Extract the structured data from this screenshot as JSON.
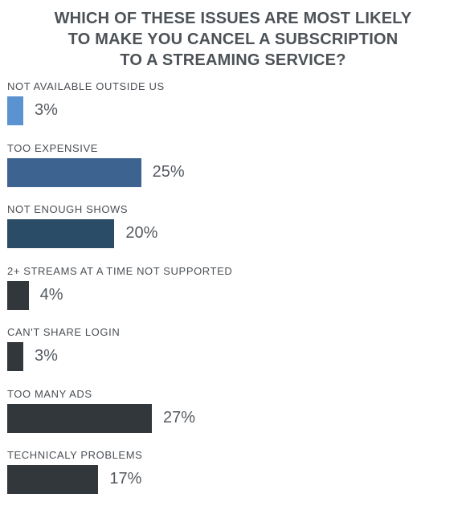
{
  "title_lines": [
    "WHICH OF THESE ISSUES ARE MOST LIKELY",
    "TO MAKE YOU CANCEL A SUBSCRIPTION",
    "TO A STREAMING SERVICE?"
  ],
  "chart_data": {
    "type": "bar",
    "orientation": "horizontal",
    "title": "WHICH OF THESE ISSUES ARE MOST LIKELY TO MAKE YOU CANCEL A SUBSCRIPTION TO A STREAMING SERVICE?",
    "categories": [
      "NOT AVAILABLE OUTSIDE US",
      "TOO EXPENSIVE",
      "NOT ENOUGH SHOWS",
      "2+ STREAMS AT A TIME NOT SUPPORTED",
      "CAN'T SHARE LOGIN",
      "TOO MANY ADS",
      "TECHNICALY PROBLEMS"
    ],
    "values": [
      3,
      25,
      20,
      4,
      3,
      27,
      17
    ],
    "value_labels": [
      "3%",
      "25%",
      "20%",
      "4%",
      "3%",
      "27%",
      "17%"
    ],
    "unit": "%",
    "bar_colors": [
      "#5b93d1",
      "#3d6390",
      "#2b4c66",
      "#32373c",
      "#32373c",
      "#32373c",
      "#32373c"
    ],
    "xlim": [
      0,
      27
    ],
    "grid": false,
    "legend": "none"
  }
}
